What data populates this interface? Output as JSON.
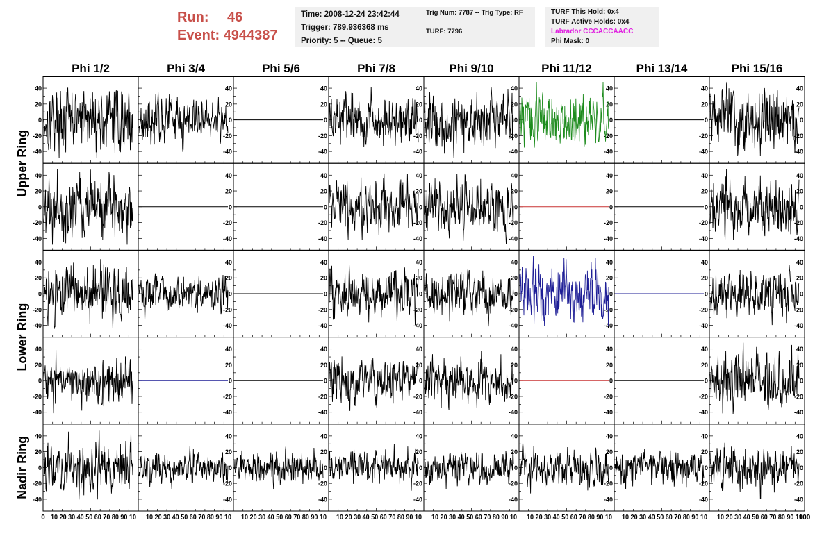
{
  "header": {
    "run_label": "Run:",
    "run_value": "46",
    "event_label": "Event:",
    "event_value": "4944387",
    "time": "Time: 2008-12-24 23:42:44",
    "trigger": "Trigger: 789.936368 ms",
    "priority": "Priority: 5 -- Queue: 5",
    "trig_num": "Trig Num: 7787 -- Trig Type: RF",
    "turf": "TURF: 7796",
    "turf_hold": "TURF This Hold: 0x4",
    "turf_active": "TURF Active Holds: 0x4",
    "labrador": "Labrador CCCACCAACC",
    "phi_mask": "Phi Mask: 0"
  },
  "colors": {
    "run_text": "#c8504a",
    "labrador_text": "#e01ee0",
    "trace_default": "#000000",
    "trace_green": "#1e8c1e",
    "trace_blue": "#1e1e96",
    "trace_red": "#c83232"
  },
  "chart_data": {
    "type": "line",
    "columns": [
      "Phi 1/2",
      "Phi 3/4",
      "Phi 5/6",
      "Phi 7/8",
      "Phi 9/10",
      "Phi 11/12",
      "Phi 13/14",
      "Phi 15/16"
    ],
    "rows": [
      "Upper Ring",
      "Lower Ring",
      "Nadir Ring"
    ],
    "y_ticks": [
      40,
      20,
      0,
      -20,
      -40
    ],
    "ylim": [
      -55,
      55
    ],
    "x_tick_label_strings": [
      "0",
      "10",
      "20",
      "30",
      "40",
      "50",
      "60",
      "70",
      "80",
      "90",
      "100"
    ],
    "x_tick_label_strip": "10 20 30 40 50 60 70 80 90 10",
    "xlim": [
      0,
      100
    ],
    "num_samples": 256,
    "panels": [
      {
        "row": 0,
        "col": 0,
        "mode": "noise",
        "amp": 18,
        "color": "trace_default"
      },
      {
        "row": 0,
        "col": 1,
        "mode": "noise",
        "amp": 13,
        "color": "trace_default"
      },
      {
        "row": 0,
        "col": 2,
        "mode": "flat",
        "color": "trace_default"
      },
      {
        "row": 0,
        "col": 3,
        "mode": "noise",
        "amp": 14,
        "color": "trace_default"
      },
      {
        "row": 0,
        "col": 4,
        "mode": "noise",
        "amp": 17,
        "color": "trace_default"
      },
      {
        "row": 0,
        "col": 5,
        "mode": "noise",
        "amp": 15,
        "color": "trace_green"
      },
      {
        "row": 0,
        "col": 6,
        "mode": "flat",
        "color": "trace_default"
      },
      {
        "row": 0,
        "col": 7,
        "mode": "noise",
        "amp": 18,
        "color": "trace_default"
      },
      {
        "row": 1,
        "col": 0,
        "mode": "noise",
        "amp": 19,
        "color": "trace_default"
      },
      {
        "row": 1,
        "col": 1,
        "mode": "flat",
        "color": "trace_default"
      },
      {
        "row": 1,
        "col": 2,
        "mode": "flat",
        "color": "trace_default"
      },
      {
        "row": 1,
        "col": 3,
        "mode": "noise",
        "amp": 15,
        "color": "trace_default"
      },
      {
        "row": 1,
        "col": 4,
        "mode": "noise",
        "amp": 16,
        "color": "trace_default"
      },
      {
        "row": 1,
        "col": 5,
        "mode": "flat",
        "color": "trace_red"
      },
      {
        "row": 1,
        "col": 6,
        "mode": "flat",
        "color": "trace_default"
      },
      {
        "row": 1,
        "col": 7,
        "mode": "noise",
        "amp": 17,
        "color": "trace_default"
      },
      {
        "row": 2,
        "col": 0,
        "mode": "noise",
        "amp": 17,
        "color": "trace_default"
      },
      {
        "row": 2,
        "col": 1,
        "mode": "noise",
        "amp": 12,
        "color": "trace_default"
      },
      {
        "row": 2,
        "col": 2,
        "mode": "flat",
        "color": "trace_default"
      },
      {
        "row": 2,
        "col": 3,
        "mode": "noise",
        "amp": 14,
        "color": "trace_default"
      },
      {
        "row": 2,
        "col": 4,
        "mode": "noise",
        "amp": 12,
        "color": "trace_default"
      },
      {
        "row": 2,
        "col": 5,
        "mode": "noise",
        "amp": 17,
        "color": "trace_blue"
      },
      {
        "row": 2,
        "col": 6,
        "mode": "flat",
        "color": "trace_blue"
      },
      {
        "row": 2,
        "col": 7,
        "mode": "noise",
        "amp": 14,
        "color": "trace_default"
      },
      {
        "row": 3,
        "col": 0,
        "mode": "noise",
        "amp": 14,
        "color": "trace_default"
      },
      {
        "row": 3,
        "col": 1,
        "mode": "flat",
        "color": "trace_blue"
      },
      {
        "row": 3,
        "col": 2,
        "mode": "flat",
        "color": "trace_default"
      },
      {
        "row": 3,
        "col": 3,
        "mode": "noise",
        "amp": 13,
        "color": "trace_default"
      },
      {
        "row": 3,
        "col": 4,
        "mode": "noise",
        "amp": 14,
        "color": "trace_default"
      },
      {
        "row": 3,
        "col": 5,
        "mode": "flat",
        "color": "trace_red"
      },
      {
        "row": 3,
        "col": 6,
        "mode": "flat",
        "color": "trace_default"
      },
      {
        "row": 3,
        "col": 7,
        "mode": "noise",
        "amp": 16,
        "color": "trace_default"
      },
      {
        "row": 4,
        "col": 0,
        "mode": "noise",
        "amp": 14,
        "color": "trace_default"
      },
      {
        "row": 4,
        "col": 1,
        "mode": "noise",
        "amp": 9,
        "color": "trace_default"
      },
      {
        "row": 4,
        "col": 2,
        "mode": "noise",
        "amp": 9,
        "color": "trace_default"
      },
      {
        "row": 4,
        "col": 3,
        "mode": "noise",
        "amp": 10,
        "color": "trace_default"
      },
      {
        "row": 4,
        "col": 4,
        "mode": "noise",
        "amp": 10,
        "color": "trace_default"
      },
      {
        "row": 4,
        "col": 5,
        "mode": "noise",
        "amp": 11,
        "color": "trace_default"
      },
      {
        "row": 4,
        "col": 6,
        "mode": "noise",
        "amp": 10,
        "color": "trace_default"
      },
      {
        "row": 4,
        "col": 7,
        "mode": "noise",
        "amp": 13,
        "color": "trace_default"
      }
    ]
  }
}
